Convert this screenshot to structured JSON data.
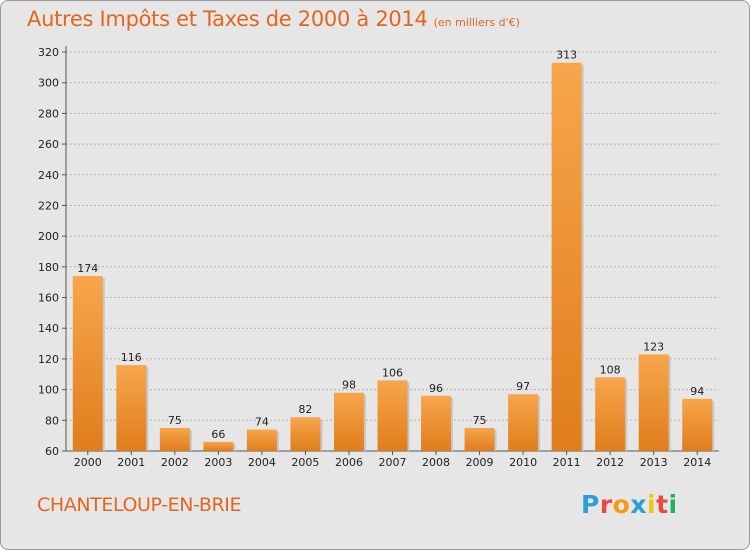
{
  "header": {
    "title": "Autres Impôts et Taxes de 2000 à 2014",
    "subtitle": "(en milliers d'€)"
  },
  "footer": {
    "city": "CHANTELOUP-EN-BRIE",
    "logo_letters": [
      "P",
      "r",
      "o",
      "x",
      "i",
      "t",
      "i"
    ],
    "logo_colors": [
      "#2d9fd8",
      "#e74c3c",
      "#f39c12",
      "#2d9fd8",
      "#f1c40f",
      "#e74c3c",
      "#27ae60"
    ]
  },
  "colors": {
    "bar_light": "#f7a64c",
    "bar_dark": "#e07d1c",
    "grid": "#b4b4b4",
    "accent": "#e2661f"
  },
  "chart_data": {
    "type": "bar",
    "title": "Autres Impôts et Taxes de 2000 à 2014",
    "subtitle": "(en milliers d'€)",
    "categories": [
      "2000",
      "2001",
      "2002",
      "2003",
      "2004",
      "2005",
      "2006",
      "2007",
      "2008",
      "2009",
      "2010",
      "2011",
      "2012",
      "2013",
      "2014"
    ],
    "values": [
      174,
      116,
      75,
      66,
      74,
      82,
      98,
      106,
      96,
      75,
      97,
      313,
      108,
      123,
      94
    ],
    "ylim": [
      60,
      320
    ],
    "yticks": [
      60,
      80,
      100,
      120,
      140,
      160,
      180,
      200,
      220,
      240,
      260,
      280,
      300,
      320
    ],
    "grid": true,
    "xlabel": "",
    "ylabel": ""
  }
}
